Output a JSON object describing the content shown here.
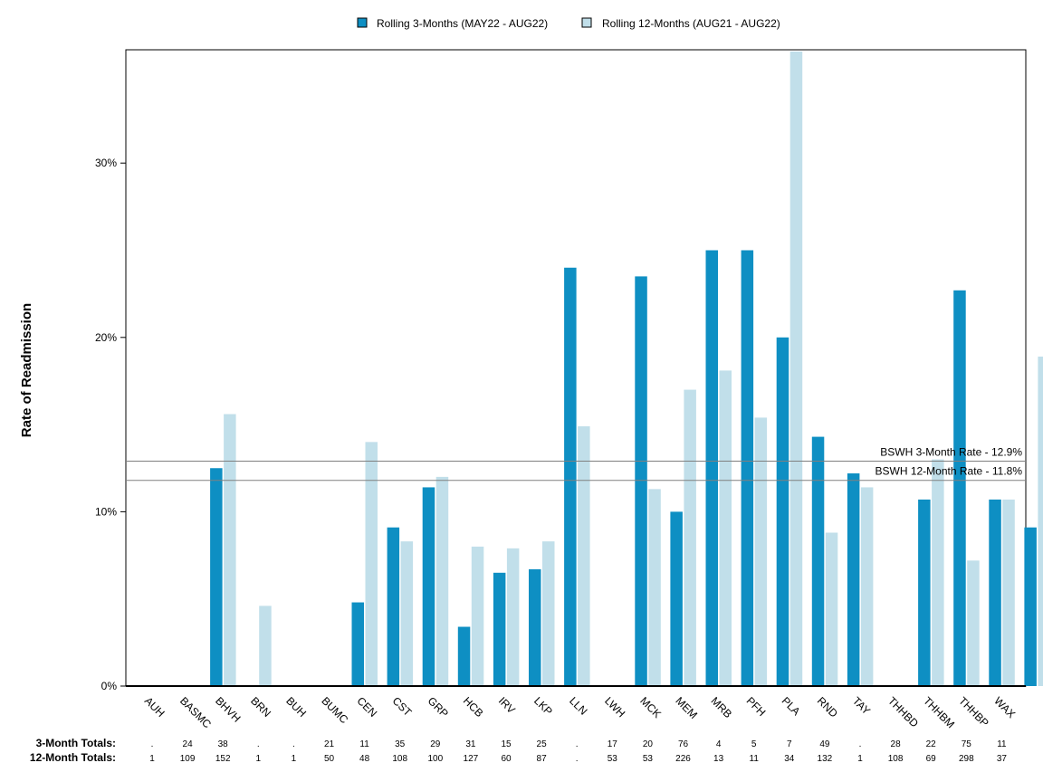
{
  "chart_data": {
    "type": "bar",
    "ylabel": "Rate of Readmission",
    "ylim": [
      0,
      0.365
    ],
    "yticks": [
      {
        "value": 0.0,
        "label": "0%"
      },
      {
        "value": 0.1,
        "label": "10%"
      },
      {
        "value": 0.2,
        "label": "20%"
      },
      {
        "value": 0.3,
        "label": "30%"
      }
    ],
    "legend_position": "top-center",
    "categories": [
      "AUH",
      "BASMC",
      "BHVH",
      "BRN",
      "BUH",
      "BUMC",
      "CEN",
      "CST",
      "GRP",
      "HCB",
      "IRV",
      "LKP",
      "LLN",
      "LWH",
      "MCK",
      "MEM",
      "MRB",
      "PFH",
      "PLA",
      "RND",
      "TAY",
      "THHBD",
      "THHBM",
      "THHBP",
      "WAX"
    ],
    "series": [
      {
        "name": "Rolling 3-Months (MAY22 - AUG22)",
        "color": "#0e8fc3",
        "values": [
          0,
          0.125,
          0,
          0,
          0,
          0.048,
          0.091,
          0.114,
          0.034,
          0.065,
          0.067,
          0.24,
          0,
          0.235,
          0.1,
          0.25,
          0.25,
          0.2,
          0.143,
          0.122,
          0,
          0.107,
          0.227,
          0.107,
          0.091
        ]
      },
      {
        "name": "Rolling 12-Months (AUG21 - AUG22)",
        "color": "#c1dfea",
        "values": [
          0,
          0.156,
          0.046,
          0,
          0,
          0.14,
          0.083,
          0.12,
          0.08,
          0.079,
          0.083,
          0.149,
          0,
          0.113,
          0.17,
          0.181,
          0.154,
          0.364,
          0.088,
          0.114,
          0,
          0.13,
          0.072,
          0.107,
          0.189
        ]
      }
    ],
    "reference_lines": [
      {
        "label": "BSWH  3-Month Rate - 12.9%",
        "value": 0.129
      },
      {
        "label": "BSWH 12-Month Rate - 11.8%",
        "value": 0.118
      }
    ],
    "totals": {
      "three_month_label": "3-Month Totals:",
      "twelve_month_label": "12-Month Totals:",
      "three_month": [
        ".",
        "24",
        "38",
        ".",
        ".",
        "21",
        "11",
        "35",
        "29",
        "31",
        "15",
        "25",
        ".",
        "17",
        "20",
        "76",
        "4",
        "5",
        "7",
        "49",
        ".",
        "28",
        "22",
        "75",
        "11"
      ],
      "twelve_month": [
        "1",
        "109",
        "152",
        "1",
        "1",
        "50",
        "48",
        "108",
        "100",
        "127",
        "60",
        "87",
        ".",
        "53",
        "53",
        "226",
        "13",
        "11",
        "34",
        "132",
        "1",
        "108",
        "69",
        "298",
        "37"
      ]
    }
  }
}
